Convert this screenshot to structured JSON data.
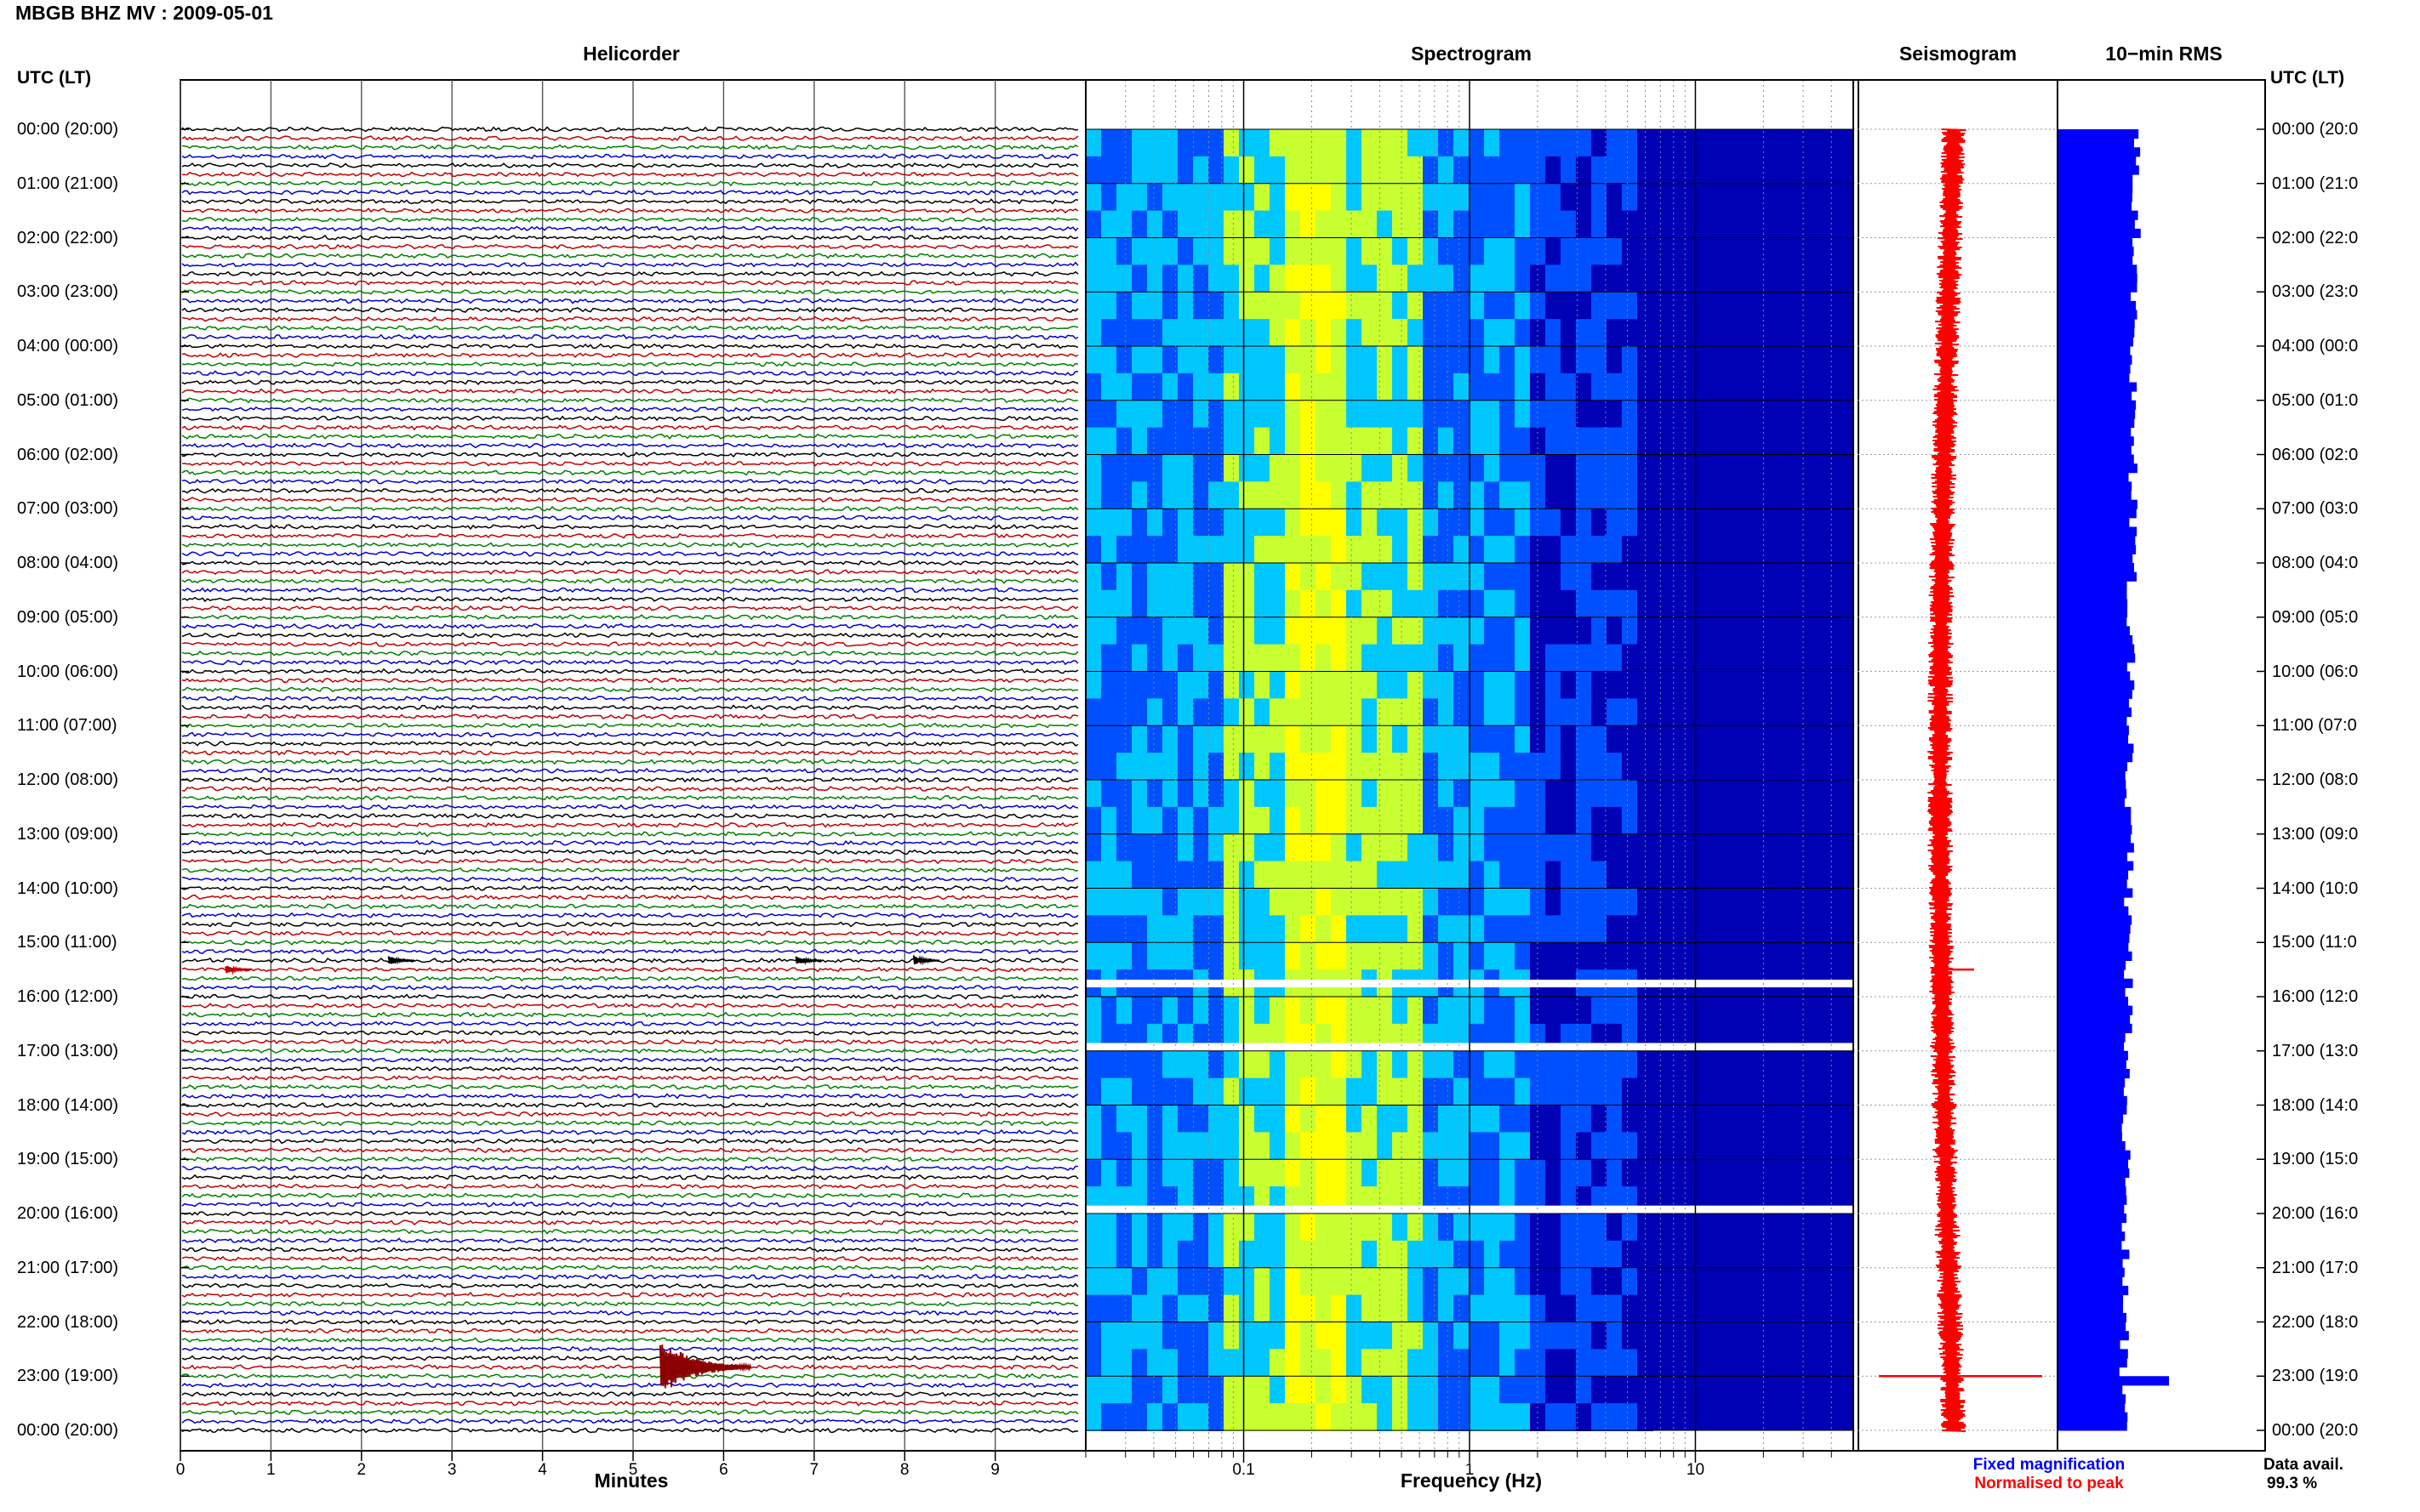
{
  "header": {
    "title": "MBGB BHZ MV : 2009-05-01",
    "utc_left": "UTC (LT)",
    "utc_right": "UTC (LT)"
  },
  "panels": {
    "helicorder": "Helicorder",
    "spectrogram": "Spectrogram",
    "seismogram": "Seismogram",
    "rms": "10−min RMS"
  },
  "time_ticks_left": [
    "00:00 (20:00)",
    "01:00 (21:00)",
    "02:00 (22:00)",
    "03:00 (23:00)",
    "04:00 (00:00)",
    "05:00 (01:00)",
    "06:00 (02:00)",
    "07:00 (03:00)",
    "08:00 (04:00)",
    "09:00 (05:00)",
    "10:00 (06:00)",
    "11:00 (07:00)",
    "12:00 (08:00)",
    "13:00 (09:00)",
    "14:00 (10:00)",
    "15:00 (11:00)",
    "16:00 (12:00)",
    "17:00 (13:00)",
    "18:00 (14:00)",
    "19:00 (15:00)",
    "20:00 (16:00)",
    "21:00 (17:00)",
    "22:00 (18:00)",
    "23:00 (19:00)",
    "00:00 (20:00)"
  ],
  "time_ticks_right": [
    "00:00 (20:0",
    "01:00 (21:0",
    "02:00 (22:0",
    "03:00 (23:0",
    "04:00 (00:0",
    "05:00 (01:0",
    "06:00 (02:0",
    "07:00 (03:0",
    "08:00 (04:0",
    "09:00 (05:0",
    "10:00 (06:0",
    "11:00 (07:0",
    "12:00 (08:0",
    "13:00 (09:0",
    "14:00 (10:0",
    "15:00 (11:0",
    "16:00 (12:0",
    "17:00 (13:0",
    "18:00 (14:0",
    "19:00 (15:0",
    "20:00 (16:0",
    "21:00 (17:0",
    "22:00 (18:0",
    "23:00 (19:0",
    "00:00 (20:0"
  ],
  "chart_data": [
    {
      "type": "line",
      "title": "Helicorder",
      "xlabel": "Minutes",
      "x_ticks": [
        "0",
        "1",
        "2",
        "3",
        "4",
        "5",
        "6",
        "7",
        "8",
        "9"
      ],
      "xlim": [
        0,
        10
      ],
      "rows_per_hour": 6,
      "trace_colors": [
        "#000000",
        "#c00000",
        "#008000",
        "#0000d0"
      ],
      "events": [
        {
          "time": "15:30",
          "minute": 0.5,
          "color": "#c00000",
          "amplitude": "small"
        },
        {
          "time": "15:20",
          "minute": 2.3,
          "color": "#000000",
          "amplitude": "small"
        },
        {
          "time": "15:20",
          "minute": 6.8,
          "color": "#000000",
          "amplitude": "small"
        },
        {
          "time": "15:20",
          "minute": 8.1,
          "color": "#000000",
          "amplitude": "small"
        },
        {
          "time": "22:50",
          "minute": 5.3,
          "color": "#8b0000",
          "amplitude": "large"
        }
      ]
    },
    {
      "type": "heatmap",
      "title": "Spectrogram",
      "xlabel": "Frequency (Hz)",
      "x_scale": "log",
      "x_ticks": [
        "0.1",
        "1",
        "10"
      ],
      "xlim": [
        0.02,
        50
      ],
      "colormap": [
        "#0000b4",
        "#0050ff",
        "#00c8ff",
        "#c8ff30",
        "#ffff00"
      ],
      "data_gaps": [
        "15:45",
        "16:55",
        "19:55"
      ]
    },
    {
      "type": "line",
      "title": "Seismogram",
      "color": "#ff0000",
      "spikes": [
        "15:30",
        "23:00"
      ]
    },
    {
      "type": "bar",
      "title": "10−min RMS",
      "color": "#0000ff",
      "peak_time": "23:00"
    }
  ],
  "legend": {
    "fixed": "Fixed magnification",
    "fixed_color": "#0000ff",
    "normalised": "Normalised to peak",
    "normalised_color": "#ff0000"
  },
  "availability": {
    "label": "Data avail.",
    "value": "99.3 %"
  }
}
